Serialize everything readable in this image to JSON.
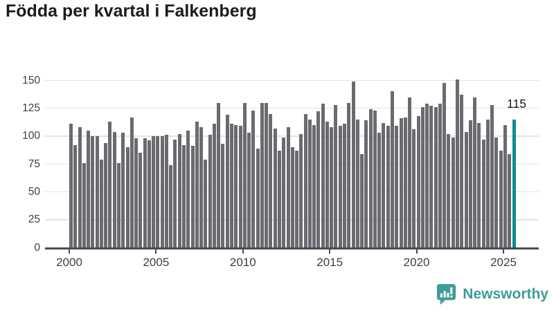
{
  "title": "Födda per kvartal i Falkenberg",
  "annotation": {
    "label": "115"
  },
  "branding": {
    "name": "Newsworthy",
    "icon": "newsworthy-speech-bubble-chart-icon",
    "color": "#3d9e96"
  },
  "colors": {
    "background": "#ffffff",
    "bar": "#6a6a71",
    "highlight_bar": "#0e8d91",
    "gridline": "#e3e3e3",
    "axis": "#4b4b52",
    "title_text": "#1c1c1a",
    "tick_text": "#3f3f3f"
  },
  "chart_data": {
    "type": "bar",
    "title": "Födda per kvartal i Falkenberg",
    "xlabel": "",
    "ylabel": "",
    "y_ticks": [
      0,
      25,
      50,
      75,
      100,
      125,
      150
    ],
    "ylim": [
      0,
      155
    ],
    "grid": true,
    "legend": "none",
    "x_tick_labels": [
      "2000",
      "2005",
      "2010",
      "2015",
      "2020",
      "2025"
    ],
    "period": "quarterly",
    "start_period": "2000-Q1",
    "end_period": "2025-Q3",
    "highlight_last_bar": true,
    "last_bar_value_label": "115",
    "values": [
      111,
      92,
      108,
      76,
      105,
      100,
      100,
      79,
      94,
      113,
      104,
      76,
      103,
      90,
      117,
      98,
      85,
      98,
      96,
      100,
      100,
      100,
      101,
      74,
      97,
      102,
      92,
      105,
      91,
      113,
      108,
      79,
      101,
      111,
      130,
      93,
      119,
      111,
      110,
      109,
      130,
      103,
      123,
      89,
      130,
      130,
      120,
      107,
      87,
      99,
      108,
      90,
      87,
      102,
      120,
      115,
      110,
      122,
      129,
      113,
      108,
      128,
      109,
      111,
      130,
      149,
      115,
      84,
      114,
      124,
      123,
      103,
      112,
      109,
      140,
      109,
      116,
      117,
      135,
      106,
      118,
      126,
      129,
      127,
      126,
      129,
      148,
      102,
      99,
      151,
      137,
      104,
      114,
      135,
      112,
      97,
      115,
      128,
      99,
      87,
      110,
      84,
      115
    ]
  }
}
